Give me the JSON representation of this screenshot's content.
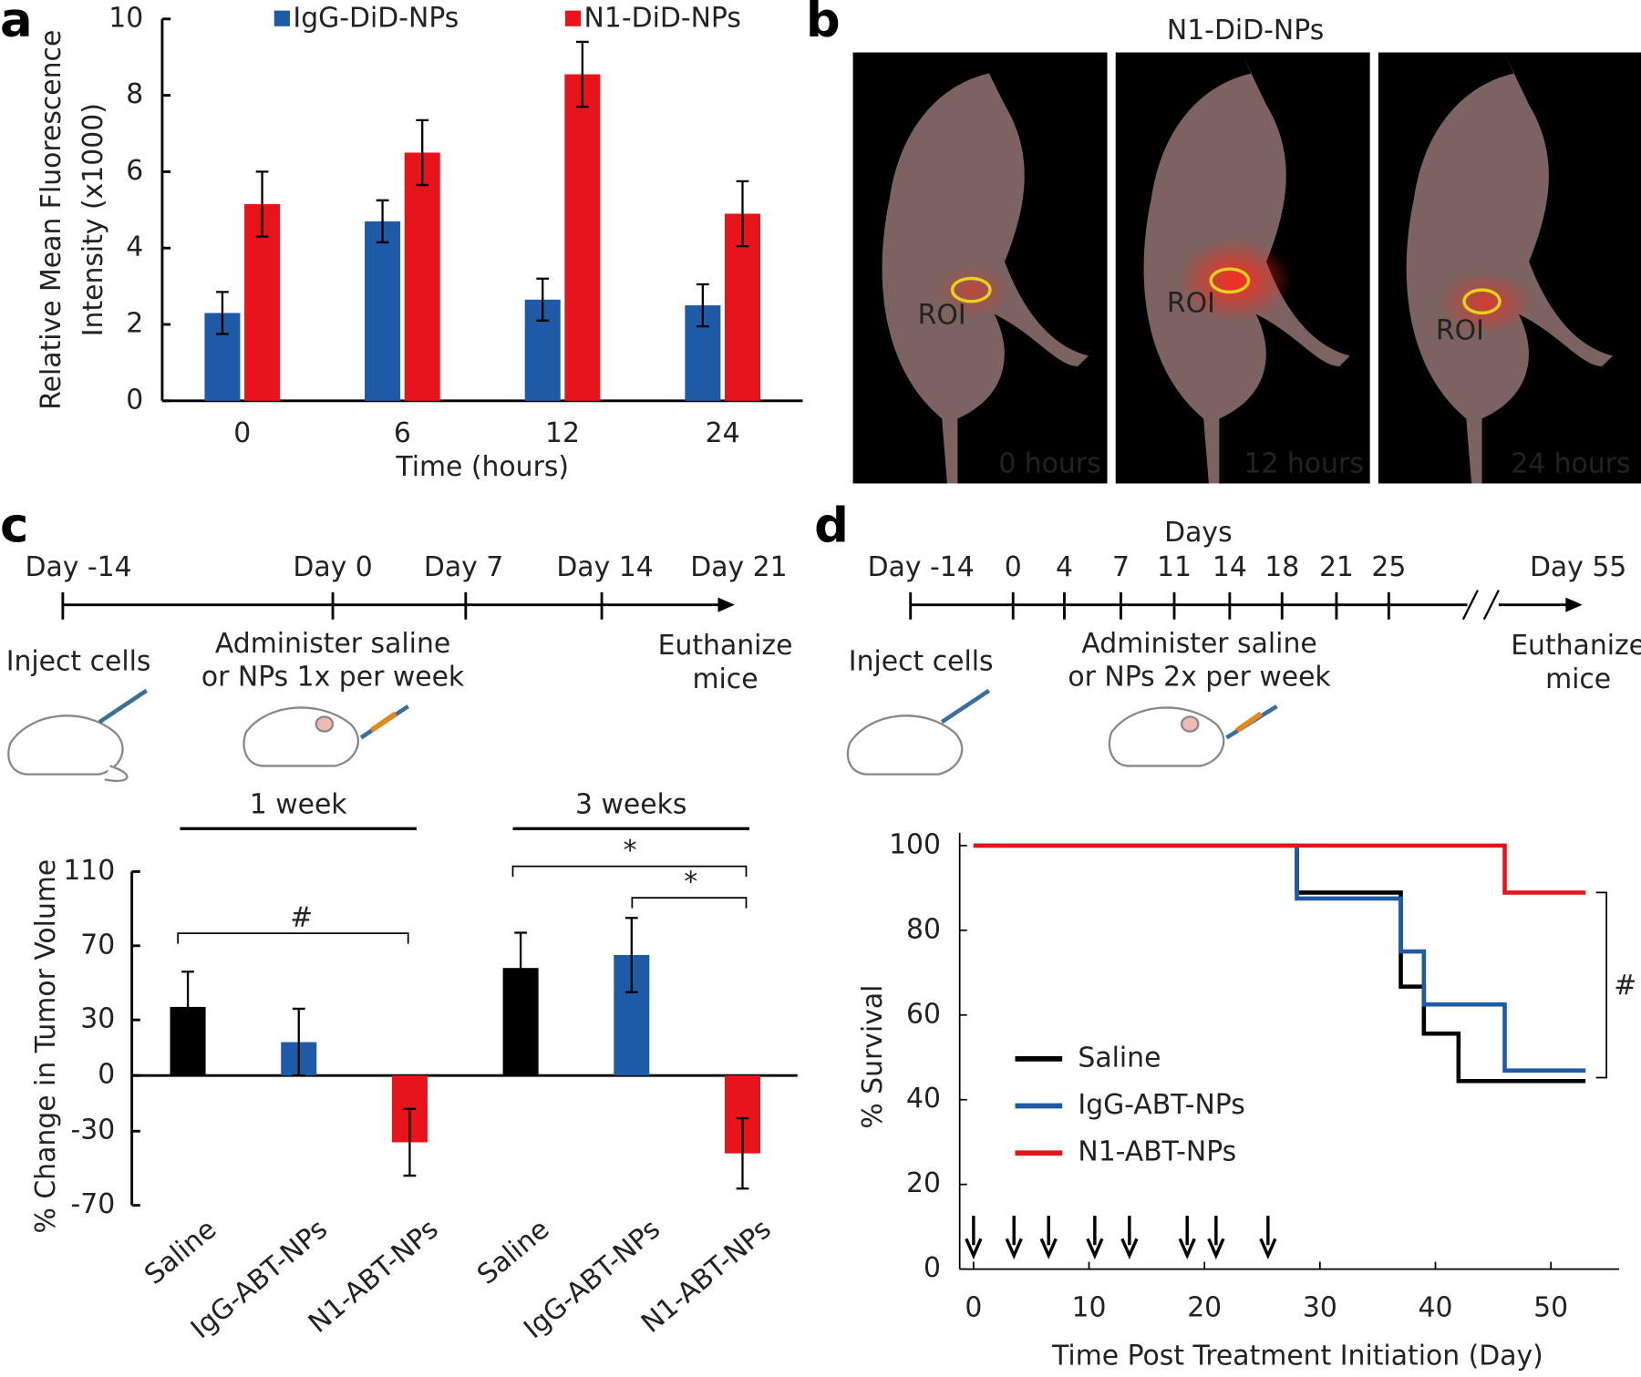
{
  "panel_labels": [
    "a",
    "b",
    "c",
    "d"
  ],
  "chart_data": [
    {
      "type": "bar",
      "y_label": [
        "Relative Mean Fluorescence",
        "Intensity (x1000)"
      ],
      "x_label": "Time (hours)",
      "categories": [
        "0",
        "6",
        "12",
        "24"
      ],
      "series": [
        {
          "name": "IgG-DiD-NPs",
          "color": "#1f5aa6",
          "values": [
            2.3,
            4.7,
            2.65,
            2.5
          ],
          "errors": [
            0.55,
            0.55,
            0.55,
            0.55
          ]
        },
        {
          "name": "N1-DiD-NPs",
          "color": "#e8141c",
          "values": [
            5.15,
            6.5,
            8.55,
            4.9
          ],
          "errors": [
            0.85,
            0.85,
            0.85,
            0.85
          ]
        }
      ],
      "ylim": [
        0,
        10
      ],
      "yticks": [
        0,
        2,
        4,
        6,
        8,
        10
      ],
      "legend": "top"
    },
    {
      "type": "bar",
      "y_label": "% Change in Tumor Volume",
      "categories": [
        "Saline",
        "IgG-ABT-NPs",
        "N1-ABT-NPs",
        "Saline",
        "IgG-ABT-NPs",
        "N1-ABT-NPs"
      ],
      "groups": [
        "1 week",
        "3 weeks"
      ],
      "values": [
        37,
        18,
        -36,
        58,
        65,
        -42
      ],
      "errors": [
        19,
        18,
        18,
        19,
        20,
        19
      ],
      "colors": [
        "#000000",
        "#1f5aa6",
        "#e8141c",
        "#000000",
        "#1f5aa6",
        "#e8141c"
      ],
      "ylim": [
        -70,
        110
      ],
      "yticks": [
        -70,
        -30,
        0,
        30,
        70,
        110
      ],
      "annotations": [
        "#",
        "*",
        "*"
      ]
    },
    {
      "type": "line",
      "step": true,
      "x_label": "Time Post Treatment Initiation (Day)",
      "y_label": "% Survival",
      "series": [
        {
          "name": "Saline",
          "color": "#000000",
          "x": [
            0,
            28,
            37,
            39,
            42,
            53
          ],
          "values": [
            100,
            88.9,
            66.7,
            55.6,
            44.4,
            44.4
          ]
        },
        {
          "name": "IgG-ABT-NPs",
          "color": "#1f5aa6",
          "x": [
            0,
            28,
            37,
            39,
            46,
            53
          ],
          "values": [
            100,
            87.5,
            75,
            62.5,
            46.9,
            46.9
          ]
        },
        {
          "name": "N1-ABT-NPs",
          "color": "#e8141c",
          "x": [
            0,
            46,
            53
          ],
          "values": [
            100,
            88.9,
            88.9
          ]
        }
      ],
      "xlim": [
        -1.2,
        55.9
      ],
      "ylim": [
        0,
        103
      ],
      "xticks": [
        0,
        10,
        20,
        30,
        40,
        50
      ],
      "yticks": [
        0,
        20,
        40,
        60,
        80,
        100
      ],
      "dose_days": [
        0,
        3.5,
        6.5,
        10.5,
        13.5,
        18.5,
        21,
        25.5
      ],
      "annotations": [
        "#"
      ],
      "legend": "lower left"
    }
  ],
  "panel_b": {
    "title": "N1-DiD-NPs",
    "images": [
      {
        "caption": "0 hours",
        "roi": "ROI"
      },
      {
        "caption": "12 hours",
        "roi": "ROI"
      },
      {
        "caption": "24 hours",
        "roi": "ROI"
      }
    ]
  },
  "timeline_c": {
    "labels": [
      "Day -14",
      "Day 0",
      "Day 7",
      "Day 14",
      "Day 21"
    ],
    "captions": [
      [
        "Inject cells"
      ],
      [
        "Administer saline",
        "or NPs 1x per week"
      ],
      [
        "Euthanize",
        "mice"
      ]
    ]
  },
  "timeline_d": {
    "header": "Days",
    "labels": [
      "Day -14",
      "0",
      "4",
      "7",
      "11",
      "14",
      "18",
      "21",
      "25",
      "Day 55"
    ],
    "captions": [
      [
        "Inject cells"
      ],
      [
        "Administer saline",
        "or NPs 2x per week"
      ],
      [
        "Euthanize",
        "mice"
      ]
    ]
  }
}
